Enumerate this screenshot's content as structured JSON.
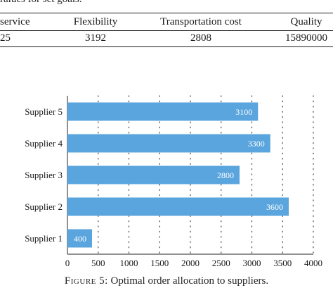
{
  "table": {
    "caption_fragment": "ralues for set goals.",
    "headers": [
      "service",
      "Flexibility",
      "Transportation cost",
      "Quality"
    ],
    "values": [
      "25",
      "3192",
      "2808",
      "15890000"
    ]
  },
  "figure_caption": {
    "label": "Figure 5:",
    "text": "Optimal order allocation to suppliers."
  },
  "chart_data": {
    "type": "bar",
    "orientation": "horizontal",
    "categories": [
      "Supplier 1",
      "Supplier 2",
      "Supplier 3",
      "Supplier 4",
      "Supplier 5"
    ],
    "values": [
      400,
      3600,
      2800,
      3300,
      3100
    ],
    "data_labels": [
      "400",
      "3600",
      "2800",
      "3300",
      "3100"
    ],
    "xlim": [
      0,
      4000
    ],
    "xticks": [
      0,
      500,
      1000,
      1500,
      2000,
      2500,
      3000,
      3500,
      4000
    ],
    "bar_color": "#5aa5dd",
    "label_color": "#ffffff",
    "grid": "vertical dotted",
    "legend": "none",
    "title": "",
    "xlabel": "",
    "ylabel": ""
  }
}
